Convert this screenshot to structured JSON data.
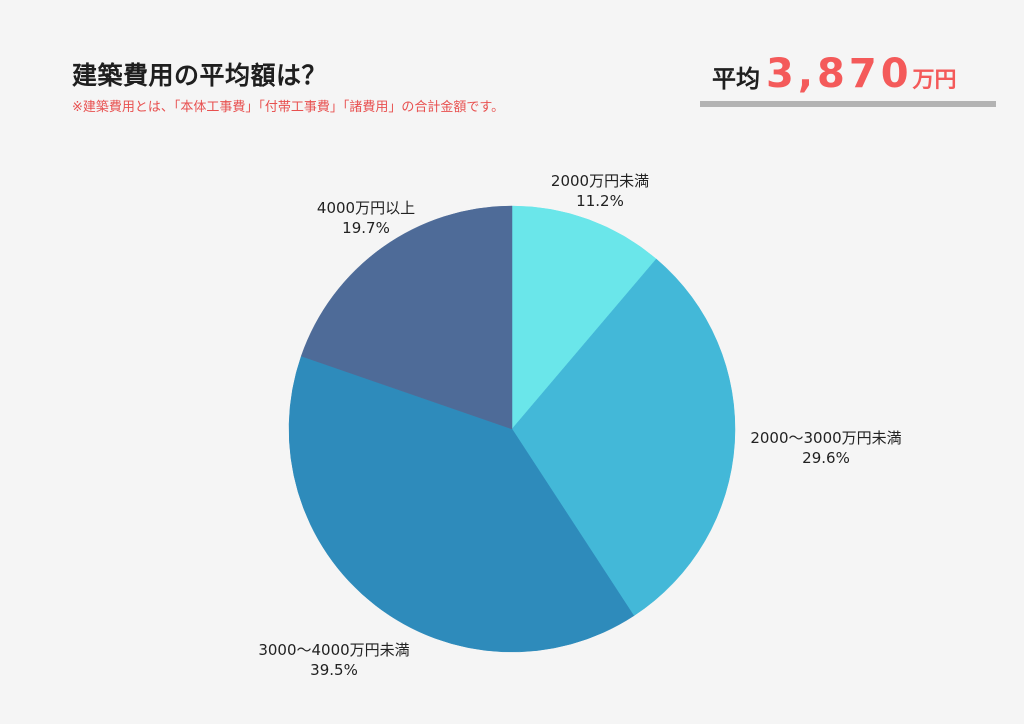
{
  "header": {
    "title": "建築費用の平均額は？",
    "note": "※建築費用とは、「本体工事費」「付帯工事費」「諸費用」の合計金額です。"
  },
  "average": {
    "label": "平均",
    "value": "3,870",
    "unit": "万円",
    "color": "#f45a5a"
  },
  "chart_data": {
    "type": "pie",
    "start": "top",
    "direction": "clockwise",
    "slices": [
      {
        "label": "2000万円未満",
        "value": 11.2,
        "display": "11.2%",
        "color": "#6ae6ea"
      },
      {
        "label": "2000〜3000万円未満",
        "value": 29.6,
        "display": "29.6%",
        "color": "#43b8d8"
      },
      {
        "label": "3000〜4000万円未満",
        "value": 39.5,
        "display": "39.5%",
        "color": "#2e8bbb"
      },
      {
        "label": "4000万円以上",
        "value": 19.7,
        "display": "19.7%",
        "color": "#4e6b98"
      }
    ]
  }
}
